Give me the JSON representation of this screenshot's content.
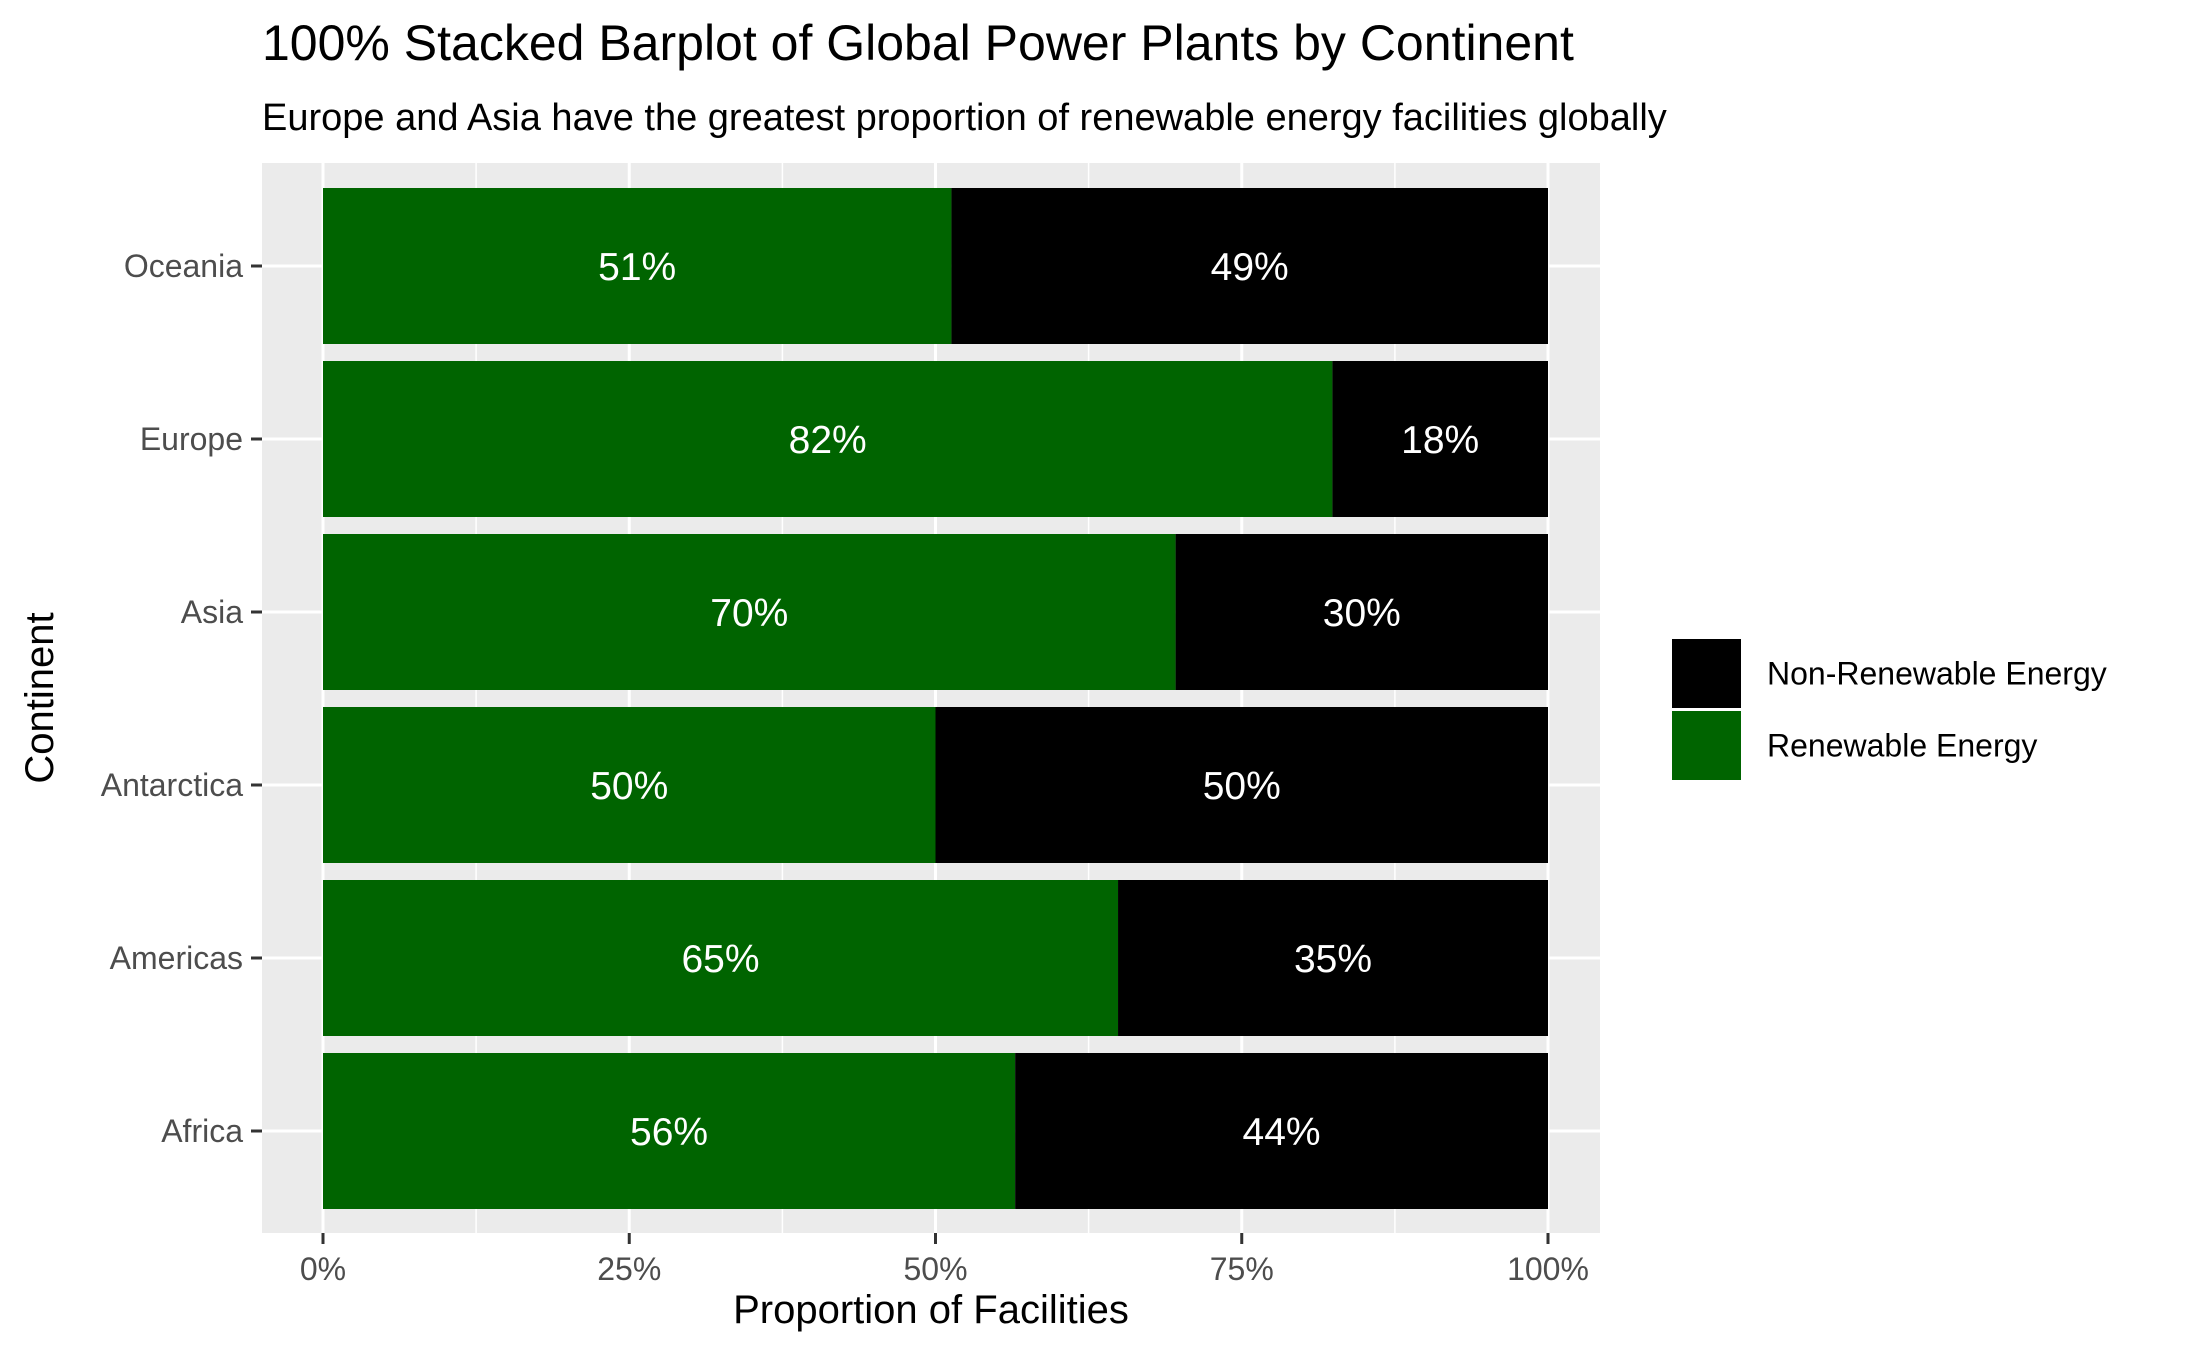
{
  "chart_data": {
    "type": "bar",
    "orientation": "horizontal",
    "stacked": "100%",
    "title": "100% Stacked Barplot of Global Power Plants by Continent",
    "subtitle": "Europe and Asia have the greatest proportion of renewable energy facilities globally",
    "xlabel": "Proportion of Facilities",
    "ylabel": "Continent",
    "xlim": [
      0,
      1
    ],
    "x_ticks": [
      0,
      0.25,
      0.5,
      0.75,
      1
    ],
    "x_tick_labels": [
      "0%",
      "25%",
      "50%",
      "75%",
      "100%"
    ],
    "categories": [
      "Africa",
      "Americas",
      "Antarctica",
      "Asia",
      "Europe",
      "Oceania"
    ],
    "series": [
      {
        "name": "Renewable Energy",
        "color": "#006400",
        "values": [
          0.565,
          0.649,
          0.5,
          0.696,
          0.824,
          0.513
        ],
        "labels": [
          "56%",
          "65%",
          "50%",
          "70%",
          "82%",
          "51%"
        ]
      },
      {
        "name": "Non-Renewable Energy",
        "color": "#000000",
        "values": [
          0.435,
          0.351,
          0.5,
          0.304,
          0.176,
          0.487
        ],
        "labels": [
          "44%",
          "35%",
          "50%",
          "30%",
          "18%",
          "49%"
        ]
      }
    ],
    "legend": {
      "position": "right",
      "entries": [
        "Non-Renewable Energy",
        "Renewable Energy"
      ]
    },
    "grid": true,
    "panel_background": "#ebebeb",
    "grid_color": "#ffffff"
  }
}
